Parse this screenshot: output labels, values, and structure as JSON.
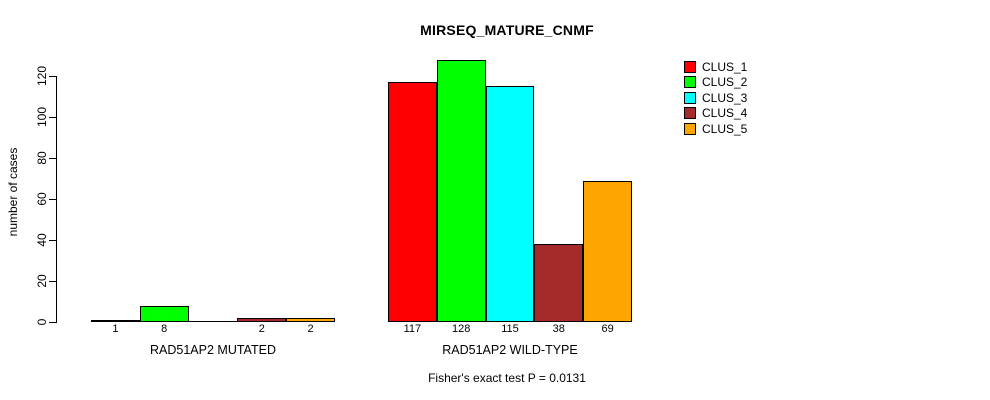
{
  "chart_data": {
    "type": "bar",
    "title": "MIRSEQ_MATURE_CNMF",
    "ylabel": "number of cases",
    "xlabel": "",
    "yticks": [
      0,
      20,
      40,
      60,
      80,
      100,
      120
    ],
    "ylim": [
      0,
      130
    ],
    "grid": false,
    "legend_position": "top-right",
    "series_names": [
      "CLUS_1",
      "CLUS_2",
      "CLUS_3",
      "CLUS_4",
      "CLUS_5"
    ],
    "series_colors": [
      "#ff0000",
      "#00ff00",
      "#00ffff",
      "#a52a2a",
      "#ffa500"
    ],
    "groups": [
      {
        "label": "RAD51AP2 MUTATED",
        "values": [
          1,
          8,
          0,
          2,
          2
        ],
        "value_labels": [
          "1",
          "8",
          "",
          "2",
          "2"
        ]
      },
      {
        "label": "RAD51AP2 WILD-TYPE",
        "values": [
          117,
          128,
          115,
          38,
          69
        ],
        "value_labels": [
          "117",
          "128",
          "115",
          "38",
          "69"
        ]
      }
    ],
    "annotation": "Fisher's exact test P = 0.0131",
    "colors": {
      "background": "#ffffff",
      "axis": "#000000",
      "text": "#000000"
    }
  }
}
